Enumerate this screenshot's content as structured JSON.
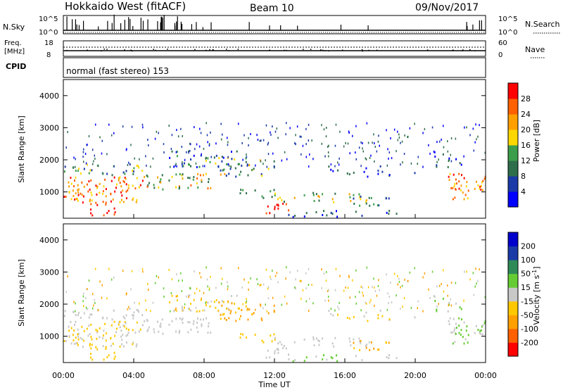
{
  "header": {
    "title": "Hokkaido West (fitACF)",
    "beam": "Beam 10",
    "date": "09/Nov/2017"
  },
  "top_panels": {
    "nsky_label": "N.Sky",
    "nsky_ticks": [
      "10^5",
      "10^0"
    ],
    "nsearch_label": "N.Search",
    "nsearch_ticks": [
      "10^5",
      "10^0"
    ],
    "freq_label": "Freq.",
    "freq_unit": "[MHz]",
    "freq_ticks": [
      "18",
      "8"
    ],
    "nave_label": "Nave",
    "nave_ticks": [
      "60",
      "0"
    ],
    "cpid_label": "CPID",
    "cpid_text": "normal (fast stereo) 153"
  },
  "colors": {
    "power": [
      "#0000ff",
      "#1a3aa8",
      "#2e6e4a",
      "#3c9e4a",
      "#ffd700",
      "#ffa000",
      "#ff6000",
      "#ff0000"
    ],
    "velocity": [
      "#ff0000",
      "#ff6000",
      "#ffa000",
      "#ffc800",
      "#c8c8c8",
      "#66cc33",
      "#2e8b57",
      "#1a3aa8",
      "#0000cc"
    ]
  },
  "chart_data": [
    {
      "type": "heatmap",
      "name": "power",
      "xlabel": "",
      "ylabel": "Slant Range [km]",
      "yticks": [
        "1000",
        "2000",
        "3000",
        "4000"
      ],
      "xticks": [
        "00:00",
        "04:00",
        "08:00",
        "12:00",
        "16:00",
        "20:00",
        "00:00"
      ],
      "colorbar_label": "Power [dB]",
      "colorbar_ticks": [
        "4",
        "8",
        "12",
        "16",
        "20",
        "24",
        "28"
      ],
      "ylim": [
        180,
        4500
      ],
      "xlim": [
        0,
        24
      ]
    },
    {
      "type": "heatmap",
      "name": "velocity",
      "xlabel": "Time UT",
      "ylabel": "Slant Range [km]",
      "yticks": [
        "1000",
        "2000",
        "3000",
        "4000"
      ],
      "xticks": [
        "00:00",
        "04:00",
        "08:00",
        "12:00",
        "16:00",
        "20:00",
        "00:00"
      ],
      "colorbar_label": "Velocity [m s^-1]",
      "colorbar_ticks": [
        "-200",
        "-100",
        "-50",
        "-15",
        "15",
        "50",
        "100",
        "200"
      ],
      "ylim": [
        180,
        4500
      ],
      "xlim": [
        0,
        24
      ]
    }
  ]
}
